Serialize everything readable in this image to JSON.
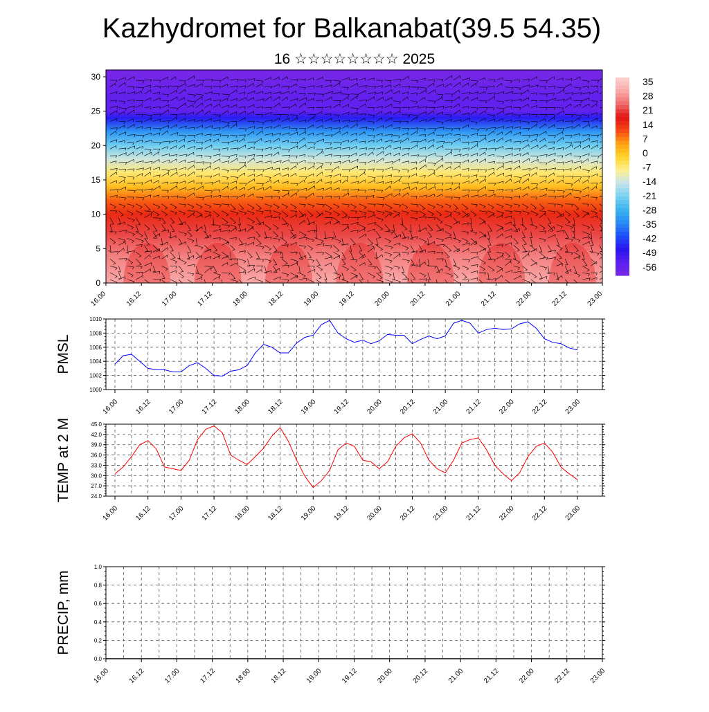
{
  "header": {
    "title": "Kazhydromet for Balkanabat(39.5 54.35)",
    "subtitle": "16 ☆☆☆☆☆☆☆☆ 2025"
  },
  "time_ticks": [
    "16.00",
    "16.12",
    "17.00",
    "17.12",
    "18.00",
    "18.12",
    "19.00",
    "19.12",
    "20.00",
    "20.12",
    "21.00",
    "21.12",
    "22.00",
    "22.12",
    "23.00"
  ],
  "colors": {
    "pmsl_line": "#0000ff",
    "temp_line": "#ff0000",
    "frame": "#000000",
    "grid": "#555555"
  },
  "chart_data": [
    {
      "id": "cross-section",
      "type": "heatmap",
      "title": "",
      "x_labels": [
        "16.00",
        "16.12",
        "17.00",
        "17.12",
        "18.00",
        "18.12",
        "19.00",
        "19.12",
        "20.00",
        "20.12",
        "21.00",
        "21.12",
        "22.00",
        "22.12",
        "23.00"
      ],
      "ylabel": "",
      "ylim": [
        0,
        31
      ],
      "y_ticks": [
        0,
        5,
        10,
        15,
        20,
        25,
        30
      ],
      "colorbar": {
        "labels": [
          35,
          28,
          21,
          14,
          7,
          0,
          -7,
          -14,
          -21,
          -28,
          -35,
          -42,
          -49,
          -56
        ],
        "range": [
          -63,
          42
        ]
      },
      "temperature_profile": [
        {
          "height": 0,
          "value": 35
        },
        {
          "height": 4,
          "value": 30
        },
        {
          "height": 7,
          "value": 25
        },
        {
          "height": 10,
          "value": 18
        },
        {
          "height": 12,
          "value": 12
        },
        {
          "height": 14,
          "value": 3
        },
        {
          "height": 16,
          "value": -5
        },
        {
          "height": 18,
          "value": -13
        },
        {
          "height": 20,
          "value": -22
        },
        {
          "height": 22,
          "value": -33
        },
        {
          "height": 24,
          "value": -48
        },
        {
          "height": 25,
          "value": -58
        },
        {
          "height": 27,
          "value": -58
        },
        {
          "height": 31,
          "value": -63
        }
      ],
      "overlay": "wind barbs"
    },
    {
      "id": "pmsl",
      "type": "line",
      "ylabel": "PMSL",
      "x_labels": [
        "16.00",
        "16.12",
        "17.00",
        "17.12",
        "18.00",
        "18.12",
        "19.00",
        "19.12",
        "20.00",
        "20.12",
        "21.00",
        "21.12",
        "22.00",
        "22.12",
        "23.00"
      ],
      "x_step_hours": 3,
      "ylim": [
        1000,
        1010
      ],
      "y_ticks": [
        1000,
        1002,
        1004,
        1006,
        1008,
        1010
      ],
      "grid": true,
      "series": [
        {
          "values": [
            1003.6,
            1004.8,
            1005.0,
            1004.0,
            1003.0,
            1002.8,
            1002.8,
            1002.5,
            1002.5,
            1003.4,
            1003.8,
            1003.0,
            1002.0,
            1001.9,
            1002.6,
            1002.8,
            1003.4,
            1005.2,
            1006.4,
            1006.0,
            1005.2,
            1005.2,
            1006.6,
            1007.4,
            1007.7,
            1009.2,
            1009.8,
            1008.0,
            1007.2,
            1006.7,
            1007.0,
            1006.5,
            1006.9,
            1007.8,
            1007.7,
            1007.7,
            1006.5,
            1007.1,
            1007.6,
            1007.2,
            1007.6,
            1009.4,
            1009.8,
            1009.4,
            1008.0,
            1008.5,
            1008.7,
            1008.5,
            1008.6,
            1009.3,
            1009.6,
            1008.7,
            1007.2,
            1006.7,
            1006.5,
            1005.9,
            1005.6
          ]
        }
      ]
    },
    {
      "id": "temp2m",
      "type": "line",
      "ylabel": "TEMP at 2 M",
      "x_labels": [
        "16.00",
        "16.12",
        "17.00",
        "17.12",
        "18.00",
        "18.12",
        "19.00",
        "19.12",
        "20.00",
        "20.12",
        "21.00",
        "21.12",
        "22.00",
        "22.12",
        "23.00"
      ],
      "x_step_hours": 3,
      "ylim": [
        24.0,
        45.0
      ],
      "y_ticks": [
        "24.0",
        "27.0",
        "30.0",
        "33.0",
        "36.0",
        "39.0",
        "42.0",
        "45.0"
      ],
      "grid": true,
      "series": [
        {
          "values": [
            30.5,
            32.5,
            35.5,
            39.0,
            40.2,
            37.8,
            32.5,
            32.0,
            31.5,
            34.5,
            40.5,
            43.5,
            44.5,
            42.5,
            36.0,
            34.5,
            33.2,
            35.5,
            38.0,
            41.5,
            44.0,
            40.0,
            34.5,
            29.8,
            26.5,
            28.5,
            31.5,
            37.5,
            39.5,
            38.5,
            34.5,
            34.0,
            32.0,
            34.0,
            38.5,
            41.0,
            42.2,
            39.5,
            34.5,
            32.0,
            30.8,
            34.5,
            39.5,
            40.5,
            41.0,
            37.5,
            33.0,
            30.5,
            28.5,
            30.8,
            35.5,
            38.5,
            39.5,
            36.8,
            32.5,
            30.5,
            28.8
          ]
        }
      ]
    },
    {
      "id": "precip",
      "type": "line",
      "ylabel": "PRECIP, mm",
      "x_labels": [
        "16.00",
        "16.12",
        "17.00",
        "17.12",
        "18.00",
        "18.12",
        "19.00",
        "19.12",
        "20.00",
        "20.12",
        "21.00",
        "21.12",
        "22.00",
        "22.12",
        "23.00"
      ],
      "ylim": [
        0.0,
        1.0
      ],
      "y_ticks": [
        "0.0",
        "0.2",
        "0.4",
        "0.6",
        "0.8",
        "1.0"
      ],
      "grid": true,
      "series": [
        {
          "values": [
            0,
            0,
            0,
            0,
            0,
            0,
            0,
            0,
            0,
            0,
            0,
            0,
            0,
            0,
            0
          ]
        }
      ]
    }
  ]
}
